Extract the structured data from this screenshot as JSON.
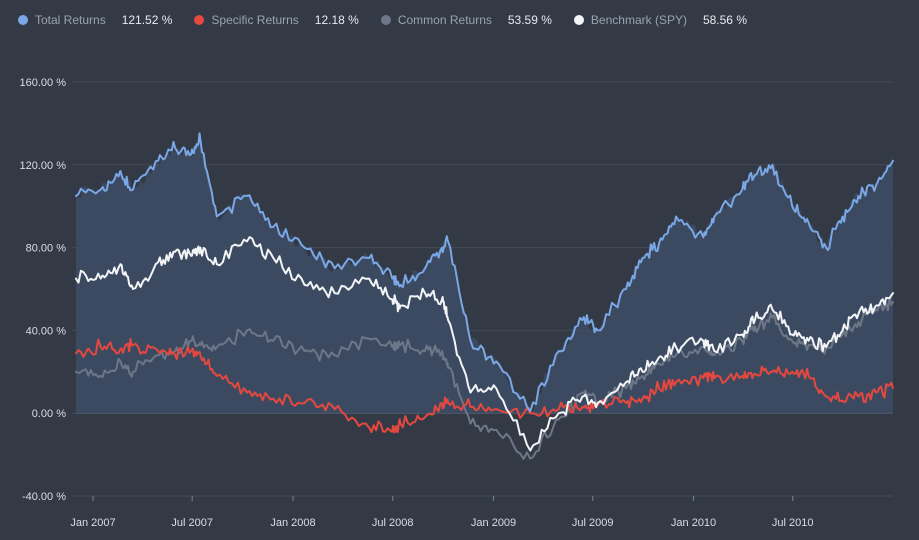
{
  "legend": [
    {
      "name": "Total Returns",
      "value": "121.52 %",
      "color": "#7aa7e6"
    },
    {
      "name": "Specific Returns",
      "value": "12.18 %",
      "color": "#e5483f"
    },
    {
      "name": "Common Returns",
      "value": "53.59 %",
      "color": "#6e7787"
    },
    {
      "name": "Benchmark (SPY)",
      "value": "58.56 %",
      "color": "#f2f4f6"
    }
  ],
  "chart_data": {
    "type": "line",
    "x_ticks": [
      "Jan 2007",
      "Jul 2007",
      "Jan 2008",
      "Jul 2008",
      "Jan 2009",
      "Jul 2009",
      "Jan 2010",
      "Jul 2010"
    ],
    "y_ticks": [
      "160.00 %",
      "120.00 %",
      "80.00 %",
      "40.00 %",
      "0.00 %",
      "-40.00 %"
    ],
    "ylim": [
      -40,
      160
    ],
    "xlim": [
      "2006-12-01",
      "2010-12-31"
    ],
    "series": [
      {
        "name": "Total Returns",
        "color": "#7aa7e6",
        "filled": true,
        "x": [
          "2006-12-01",
          "2007-01-15",
          "2007-02-20",
          "2007-03-15",
          "2007-04-30",
          "2007-05-31",
          "2007-06-29",
          "2007-07-16",
          "2007-08-15",
          "2007-10-09",
          "2007-11-26",
          "2008-01-22",
          "2008-03-17",
          "2008-05-19",
          "2008-06-30",
          "2008-07-15",
          "2008-08-29",
          "2008-09-29",
          "2008-10-10",
          "2008-11-20",
          "2009-01-06",
          "2009-03-09",
          "2009-04-30",
          "2009-06-12",
          "2009-07-10",
          "2009-08-31",
          "2009-09-30",
          "2009-10-30",
          "2009-11-30",
          "2010-01-19",
          "2010-02-08",
          "2010-03-31",
          "2010-04-23",
          "2010-05-25",
          "2010-06-30",
          "2010-07-30",
          "2010-08-31",
          "2010-09-30",
          "2010-10-29",
          "2010-11-30",
          "2010-12-31"
        ],
        "values": [
          105,
          108,
          117,
          108,
          122,
          128,
          125,
          132,
          95,
          105,
          90,
          80,
          70,
          75,
          65,
          62,
          70,
          80,
          83,
          35,
          25,
          1,
          30,
          45,
          40,
          60,
          75,
          82,
          95,
          85,
          95,
          108,
          115,
          120,
          100,
          92,
          80,
          95,
          105,
          110,
          122
        ]
      },
      {
        "name": "Benchmark (SPY)",
        "color": "#f2f4f6",
        "filled": false,
        "x": [
          "2006-12-01",
          "2007-01-15",
          "2007-02-20",
          "2007-03-15",
          "2007-04-30",
          "2007-05-31",
          "2007-06-29",
          "2007-07-16",
          "2007-08-15",
          "2007-10-09",
          "2007-11-26",
          "2008-01-22",
          "2008-03-17",
          "2008-05-19",
          "2008-06-30",
          "2008-07-15",
          "2008-08-29",
          "2008-09-29",
          "2008-10-10",
          "2008-11-20",
          "2009-01-06",
          "2009-03-09",
          "2009-04-30",
          "2009-06-12",
          "2009-07-10",
          "2009-08-31",
          "2009-09-30",
          "2009-10-30",
          "2009-11-30",
          "2010-01-19",
          "2010-02-08",
          "2010-03-31",
          "2010-04-23",
          "2010-05-25",
          "2010-06-30",
          "2010-07-30",
          "2010-08-31",
          "2010-09-30",
          "2010-10-29",
          "2010-11-30",
          "2010-12-31"
        ],
        "values": [
          65,
          65,
          72,
          60,
          73,
          78,
          76,
          80,
          72,
          83,
          75,
          62,
          58,
          65,
          55,
          52,
          58,
          55,
          45,
          10,
          12,
          -18,
          0,
          8,
          5,
          15,
          20,
          27,
          32,
          35,
          30,
          38,
          45,
          50,
          38,
          35,
          32,
          40,
          48,
          52,
          58
        ]
      },
      {
        "name": "Common Returns",
        "color": "#6e7787",
        "filled": false,
        "x": [
          "2006-12-01",
          "2007-01-15",
          "2007-02-20",
          "2007-03-15",
          "2007-04-30",
          "2007-05-31",
          "2007-06-29",
          "2007-07-16",
          "2007-08-15",
          "2007-10-09",
          "2007-11-26",
          "2008-01-22",
          "2008-03-17",
          "2008-05-19",
          "2008-06-30",
          "2008-07-15",
          "2008-08-29",
          "2008-09-29",
          "2008-10-10",
          "2008-11-20",
          "2009-01-06",
          "2009-03-09",
          "2009-04-30",
          "2009-06-12",
          "2009-07-10",
          "2009-08-31",
          "2009-09-30",
          "2009-10-30",
          "2009-11-30",
          "2010-01-19",
          "2010-02-08",
          "2010-03-31",
          "2010-04-23",
          "2010-05-25",
          "2010-06-30",
          "2010-07-30",
          "2010-08-31",
          "2010-09-30",
          "2010-10-29",
          "2010-11-30",
          "2010-12-31"
        ],
        "values": [
          20,
          18,
          25,
          20,
          28,
          30,
          35,
          33,
          32,
          40,
          35,
          30,
          28,
          36,
          32,
          33,
          30,
          30,
          22,
          -5,
          -8,
          -22,
          -3,
          10,
          5,
          12,
          18,
          24,
          28,
          32,
          28,
          35,
          42,
          46,
          35,
          33,
          31,
          38,
          44,
          50,
          53.6
        ]
      },
      {
        "name": "Specific Returns",
        "color": "#e5483f",
        "filled": false,
        "x": [
          "2006-12-01",
          "2007-01-15",
          "2007-02-20",
          "2007-03-15",
          "2007-04-30",
          "2007-05-31",
          "2007-06-29",
          "2007-07-16",
          "2007-08-15",
          "2007-10-09",
          "2007-11-26",
          "2008-01-22",
          "2008-03-17",
          "2008-05-19",
          "2008-06-30",
          "2008-07-15",
          "2008-08-29",
          "2008-09-29",
          "2008-10-10",
          "2008-11-20",
          "2009-01-06",
          "2009-03-09",
          "2009-04-30",
          "2009-06-12",
          "2009-07-10",
          "2009-08-31",
          "2009-09-30",
          "2009-10-30",
          "2009-11-30",
          "2010-01-19",
          "2010-02-08",
          "2010-03-31",
          "2010-04-23",
          "2010-05-25",
          "2010-06-30",
          "2010-07-30",
          "2010-08-31",
          "2010-09-30",
          "2010-10-29",
          "2010-11-30",
          "2010-12-31"
        ],
        "values": [
          29,
          32,
          31,
          33,
          30,
          28,
          30,
          28,
          18,
          10,
          7,
          5,
          2,
          -7,
          -9,
          -5,
          -2,
          5,
          5,
          3,
          2,
          0,
          2,
          3,
          4,
          5,
          7,
          12,
          15,
          17,
          17,
          18,
          19,
          20,
          20,
          18,
          8,
          6,
          8,
          10,
          12.2
        ]
      }
    ]
  }
}
